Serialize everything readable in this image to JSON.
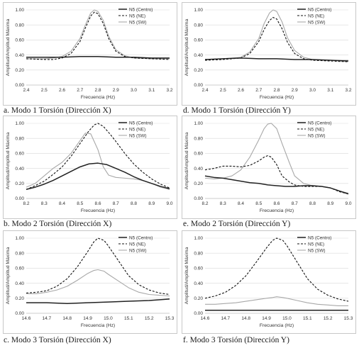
{
  "legend": [
    "N5 (Centro)",
    "N5 (NE)",
    "N5 (SW)"
  ],
  "colors": {
    "centro": "#222222",
    "ne": "#111111",
    "sw": "#a8a8a8"
  },
  "captions": [
    "a. Modo 1 Torsión (Dirección X)",
    "d. Modo 1 Torsión (Dirección Y)",
    "b. Modo 2 Torsión (Dirección X)",
    "e. Modo 2 Torsión (Dirección Y)",
    "c. Modo 3 Torsión  (Dirección X)",
    "f. Modo 3 Torsión (Dirección Y)"
  ],
  "chart_data": [
    {
      "type": "line",
      "xlabel": "Frecuencia (Hz)",
      "ylabel": "Amplitud/Amplitud Máxima",
      "xlim": [
        2.4,
        3.2
      ],
      "ylim": [
        0,
        1.0
      ],
      "xticks": [
        "2.4",
        "2.5",
        "2.6",
        "2.7",
        "2.8",
        "2.9",
        "3.0",
        "3.1",
        "3.2"
      ],
      "yticks": [
        "0.00",
        "0.20",
        "0.40",
        "0.60",
        "0.80",
        "1.00"
      ],
      "legend_position": "top-right",
      "series": [
        {
          "name": "N5 (Centro)",
          "style": "solid",
          "x": [
            2.4,
            2.5,
            2.6,
            2.7,
            2.8,
            2.9,
            3.0,
            3.1,
            3.2
          ],
          "y": [
            0.37,
            0.37,
            0.37,
            0.38,
            0.38,
            0.37,
            0.37,
            0.36,
            0.36
          ]
        },
        {
          "name": "N5 (NE)",
          "style": "dashed",
          "x": [
            2.4,
            2.5,
            2.55,
            2.6,
            2.65,
            2.7,
            2.73,
            2.76,
            2.78,
            2.8,
            2.83,
            2.86,
            2.9,
            2.95,
            3.0,
            3.1,
            3.2
          ],
          "y": [
            0.35,
            0.34,
            0.34,
            0.36,
            0.42,
            0.58,
            0.76,
            0.92,
            0.97,
            0.95,
            0.82,
            0.62,
            0.45,
            0.38,
            0.36,
            0.35,
            0.34
          ]
        },
        {
          "name": "N5 (SW)",
          "style": "solid",
          "x": [
            2.4,
            2.5,
            2.55,
            2.6,
            2.65,
            2.7,
            2.73,
            2.76,
            2.78,
            2.8,
            2.83,
            2.86,
            2.9,
            2.95,
            3.0,
            3.1,
            3.2
          ],
          "y": [
            0.35,
            0.35,
            0.36,
            0.38,
            0.45,
            0.62,
            0.8,
            0.96,
            1.0,
            0.98,
            0.86,
            0.65,
            0.47,
            0.39,
            0.36,
            0.35,
            0.35
          ]
        }
      ]
    },
    {
      "type": "line",
      "xlabel": "Frecuencia (Hz)",
      "ylabel": "Amplitud/Amplitud Máxima",
      "xlim": [
        2.4,
        3.2
      ],
      "ylim": [
        0,
        1.0
      ],
      "xticks": [
        "2.4",
        "2.5",
        "2.6",
        "2.7",
        "2.8",
        "2.9",
        "3.0",
        "3.1",
        "3.2"
      ],
      "yticks": [
        "0.00",
        "0.20",
        "0.40",
        "0.60",
        "0.80",
        "1.00"
      ],
      "legend_position": "top-right",
      "series": [
        {
          "name": "N5 (Centro)",
          "style": "solid",
          "x": [
            2.4,
            2.5,
            2.6,
            2.7,
            2.8,
            2.9,
            3.0,
            3.1,
            3.2
          ],
          "y": [
            0.34,
            0.35,
            0.36,
            0.35,
            0.35,
            0.34,
            0.34,
            0.33,
            0.32
          ]
        },
        {
          "name": "N5 (NE)",
          "style": "dashed",
          "x": [
            2.4,
            2.5,
            2.6,
            2.65,
            2.7,
            2.73,
            2.76,
            2.78,
            2.8,
            2.83,
            2.86,
            2.9,
            2.95,
            3.0,
            3.1,
            3.2
          ],
          "y": [
            0.33,
            0.34,
            0.36,
            0.42,
            0.58,
            0.74,
            0.86,
            0.9,
            0.88,
            0.75,
            0.57,
            0.42,
            0.35,
            0.33,
            0.32,
            0.31
          ]
        },
        {
          "name": "N5 (SW)",
          "style": "solid",
          "x": [
            2.4,
            2.5,
            2.6,
            2.65,
            2.7,
            2.73,
            2.76,
            2.78,
            2.8,
            2.83,
            2.86,
            2.9,
            2.95,
            3.0,
            3.1,
            3.2
          ],
          "y": [
            0.34,
            0.35,
            0.37,
            0.44,
            0.62,
            0.82,
            0.96,
            1.0,
            0.98,
            0.84,
            0.63,
            0.46,
            0.37,
            0.34,
            0.33,
            0.33
          ]
        }
      ]
    },
    {
      "type": "line",
      "xlabel": "Frecuencia (Hz)",
      "ylabel": "Amplitud/Amplitud Máxima",
      "xlim": [
        8.2,
        9.0
      ],
      "ylim": [
        0,
        1.0
      ],
      "xticks": [
        "8.2",
        "8.3",
        "8.4",
        "8.5",
        "8.6",
        "8.7",
        "8.8",
        "8.9",
        "9.0"
      ],
      "yticks": [
        "0.00",
        "0.20",
        "0.40",
        "0.60",
        "0.80",
        "1.00"
      ],
      "legend_position": "top-right",
      "series": [
        {
          "name": "N5 (Centro)",
          "style": "solid",
          "x": [
            8.2,
            8.25,
            8.3,
            8.35,
            8.4,
            8.45,
            8.5,
            8.55,
            8.6,
            8.65,
            8.7,
            8.75,
            8.8,
            8.85,
            8.9,
            8.95,
            9.0
          ],
          "y": [
            0.12,
            0.15,
            0.19,
            0.24,
            0.3,
            0.36,
            0.42,
            0.46,
            0.47,
            0.45,
            0.4,
            0.35,
            0.29,
            0.24,
            0.2,
            0.16,
            0.13
          ]
        },
        {
          "name": "N5 (NE)",
          "style": "dashed",
          "x": [
            8.2,
            8.25,
            8.3,
            8.35,
            8.4,
            8.45,
            8.5,
            8.55,
            8.58,
            8.6,
            8.63,
            8.67,
            8.7,
            8.75,
            8.8,
            8.85,
            8.9,
            8.95,
            9.0
          ],
          "y": [
            0.12,
            0.17,
            0.23,
            0.32,
            0.42,
            0.56,
            0.73,
            0.9,
            0.98,
            1.0,
            0.96,
            0.85,
            0.76,
            0.6,
            0.46,
            0.35,
            0.26,
            0.19,
            0.14
          ]
        },
        {
          "name": "N5 (SW)",
          "style": "solid",
          "x": [
            8.2,
            8.25,
            8.3,
            8.35,
            8.4,
            8.45,
            8.5,
            8.53,
            8.56,
            8.6,
            8.63,
            8.66,
            8.7,
            8.75,
            8.8,
            8.85,
            8.9,
            8.95,
            9.0
          ],
          "y": [
            0.15,
            0.2,
            0.3,
            0.4,
            0.48,
            0.6,
            0.77,
            0.87,
            0.86,
            0.65,
            0.42,
            0.31,
            0.28,
            0.27,
            0.26,
            0.24,
            0.2,
            0.15,
            0.12
          ]
        }
      ]
    },
    {
      "type": "line",
      "xlabel": "Frecuencia (Hz)",
      "ylabel": "Amplitud/Amplitud Máxima",
      "xlim": [
        8.2,
        9.0
      ],
      "ylim": [
        0,
        1.0
      ],
      "xticks": [
        "8.2",
        "8.3",
        "8.4",
        "8.5",
        "8.6",
        "8.7",
        "8.8",
        "8.9",
        "9.0"
      ],
      "yticks": [
        "0.00",
        "0.20",
        "0.40",
        "0.60",
        "0.80",
        "1.00"
      ],
      "legend_position": "top-right",
      "series": [
        {
          "name": "N5 (Centro)",
          "style": "solid",
          "x": [
            8.2,
            8.25,
            8.3,
            8.35,
            8.4,
            8.45,
            8.5,
            8.55,
            8.6,
            8.65,
            8.7,
            8.75,
            8.8,
            8.85,
            8.9,
            8.95,
            9.0
          ],
          "y": [
            0.3,
            0.28,
            0.27,
            0.25,
            0.23,
            0.21,
            0.2,
            0.18,
            0.17,
            0.16,
            0.16,
            0.17,
            0.17,
            0.16,
            0.14,
            0.1,
            0.06
          ]
        },
        {
          "name": "N5 (NE)",
          "style": "dashed",
          "x": [
            8.2,
            8.25,
            8.3,
            8.35,
            8.4,
            8.45,
            8.5,
            8.53,
            8.55,
            8.57,
            8.6,
            8.63,
            8.67,
            8.7,
            8.75,
            8.8,
            8.85,
            8.9,
            8.95,
            9.0
          ],
          "y": [
            0.38,
            0.4,
            0.43,
            0.43,
            0.42,
            0.44,
            0.5,
            0.55,
            0.57,
            0.55,
            0.45,
            0.3,
            0.22,
            0.18,
            0.16,
            0.16,
            0.16,
            0.14,
            0.09,
            0.06
          ]
        },
        {
          "name": "N5 (SW)",
          "style": "solid",
          "x": [
            8.2,
            8.25,
            8.3,
            8.35,
            8.4,
            8.45,
            8.5,
            8.53,
            8.55,
            8.57,
            8.6,
            8.63,
            8.67,
            8.7,
            8.75,
            8.8,
            8.85,
            8.9,
            8.95,
            9.0
          ],
          "y": [
            0.27,
            0.26,
            0.27,
            0.3,
            0.38,
            0.55,
            0.78,
            0.93,
            0.99,
            1.0,
            0.93,
            0.73,
            0.48,
            0.3,
            0.2,
            0.17,
            0.16,
            0.14,
            0.1,
            0.07
          ]
        }
      ]
    },
    {
      "type": "line",
      "xlabel": "Frecuencia (Hz)",
      "ylabel": "Amplitud/Amplitud Máxima",
      "xlim": [
        14.6,
        15.3
      ],
      "ylim": [
        0,
        1.0
      ],
      "xticks": [
        "14.6",
        "14.7",
        "14.8",
        "14.9",
        "15.0",
        "15.1",
        "15.2",
        "15.3"
      ],
      "yticks": [
        "0.00",
        "0.20",
        "0.40",
        "0.60",
        "0.80",
        "1.00"
      ],
      "legend_position": "top-right",
      "series": [
        {
          "name": "N5 (Centro)",
          "style": "solid",
          "x": [
            14.6,
            14.7,
            14.8,
            14.9,
            15.0,
            15.1,
            15.2,
            15.3
          ],
          "y": [
            0.14,
            0.14,
            0.13,
            0.14,
            0.15,
            0.16,
            0.17,
            0.19
          ]
        },
        {
          "name": "N5 (NE)",
          "style": "dashed",
          "x": [
            14.6,
            14.65,
            14.7,
            14.75,
            14.8,
            14.85,
            14.9,
            14.93,
            14.95,
            14.98,
            15.0,
            15.05,
            15.1,
            15.15,
            15.2,
            15.25,
            15.3
          ],
          "y": [
            0.27,
            0.28,
            0.3,
            0.36,
            0.46,
            0.62,
            0.82,
            0.95,
            1.0,
            0.97,
            0.9,
            0.7,
            0.5,
            0.38,
            0.31,
            0.27,
            0.25
          ]
        },
        {
          "name": "N5 (SW)",
          "style": "solid",
          "x": [
            14.6,
            14.65,
            14.7,
            14.75,
            14.8,
            14.85,
            14.9,
            14.93,
            14.95,
            14.98,
            15.0,
            15.05,
            15.1,
            15.15,
            15.2,
            15.25,
            15.3
          ],
          "y": [
            0.26,
            0.26,
            0.28,
            0.31,
            0.36,
            0.44,
            0.53,
            0.57,
            0.58,
            0.56,
            0.52,
            0.43,
            0.34,
            0.28,
            0.25,
            0.24,
            0.23
          ]
        }
      ]
    },
    {
      "type": "line",
      "xlabel": "Frecuencia (Hz)",
      "ylabel": "Amplitud/Amplitud Máxima",
      "xlim": [
        14.6,
        15.3
      ],
      "ylim": [
        0,
        1.0
      ],
      "xticks": [
        "14.6",
        "14.7",
        "14.8",
        "14.9",
        "15.0",
        "15.1",
        "15.2",
        "15.3"
      ],
      "yticks": [
        "0.00",
        "0.20",
        "0.40",
        "0.60",
        "0.80",
        "1.00"
      ],
      "legend_position": "top-right",
      "series": [
        {
          "name": "N5 (Centro)",
          "style": "solid",
          "x": [
            14.6,
            14.7,
            14.8,
            14.9,
            15.0,
            15.1,
            15.2,
            15.3
          ],
          "y": [
            0.04,
            0.04,
            0.04,
            0.04,
            0.04,
            0.04,
            0.04,
            0.04
          ]
        },
        {
          "name": "N5 (NE)",
          "style": "dashed",
          "x": [
            14.6,
            14.65,
            14.7,
            14.75,
            14.8,
            14.85,
            14.9,
            14.93,
            14.95,
            14.98,
            15.0,
            15.05,
            15.1,
            15.15,
            15.2,
            15.25,
            15.3
          ],
          "y": [
            0.2,
            0.23,
            0.28,
            0.37,
            0.5,
            0.68,
            0.87,
            0.97,
            1.0,
            0.97,
            0.9,
            0.68,
            0.46,
            0.32,
            0.24,
            0.19,
            0.16
          ]
        },
        {
          "name": "N5 (SW)",
          "style": "solid",
          "x": [
            14.6,
            14.65,
            14.7,
            14.75,
            14.8,
            14.85,
            14.9,
            14.93,
            14.95,
            14.98,
            15.0,
            15.05,
            15.1,
            15.15,
            15.2,
            15.25,
            15.3
          ],
          "y": [
            0.12,
            0.12,
            0.13,
            0.14,
            0.16,
            0.18,
            0.2,
            0.21,
            0.22,
            0.21,
            0.2,
            0.17,
            0.14,
            0.12,
            0.11,
            0.1,
            0.1
          ]
        }
      ]
    }
  ]
}
